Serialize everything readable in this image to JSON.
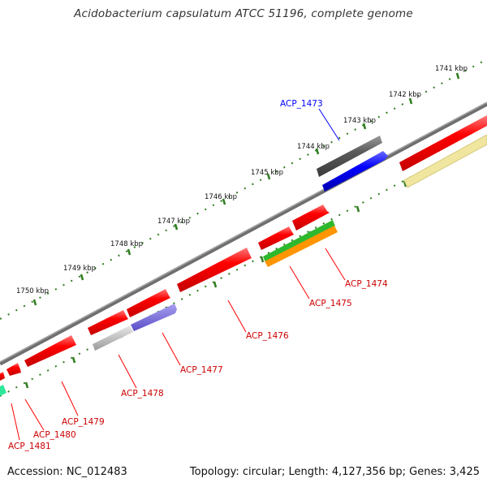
{
  "header": {
    "title": "Acidobacterium capsulatum ATCC 51196, complete genome"
  },
  "footer": {
    "accession": "Accession: NC_012483",
    "topology": "Topology: circular; Length: 4,127,356 bp; Genes: 3,425"
  },
  "scale_labels": [
    "1741 kbp",
    "1742 kbp",
    "1743 kbp",
    "1744 kbp",
    "1745 kbp",
    "1746 kbp",
    "1747 kbp",
    "1748 kbp",
    "1749 kbp",
    "1750 kbp"
  ],
  "genes": [
    {
      "label": "ACP_1473",
      "color": "#0000ff"
    },
    {
      "label": "ACP_1474",
      "color": "#ff0000"
    },
    {
      "label": "ACP_1475",
      "color": "#ff0000"
    },
    {
      "label": "ACP_1476",
      "color": "#ff0000"
    },
    {
      "label": "ACP_1477",
      "color": "#ff0000"
    },
    {
      "label": "ACP_1478",
      "color": "#ff0000"
    },
    {
      "label": "ACP_1479",
      "color": "#ff0000"
    },
    {
      "label": "ACP_1480",
      "color": "#ff0000"
    },
    {
      "label": "ACP_1481",
      "color": "#ff0000"
    }
  ],
  "colors": {
    "backbone": "#808080",
    "scale_ticks": "#2e7d1e",
    "forward_gene": "#ff0000",
    "reverse_gene": "#ff0000",
    "highlight_gene": "#0000ff",
    "label_line": "#ff0000"
  }
}
